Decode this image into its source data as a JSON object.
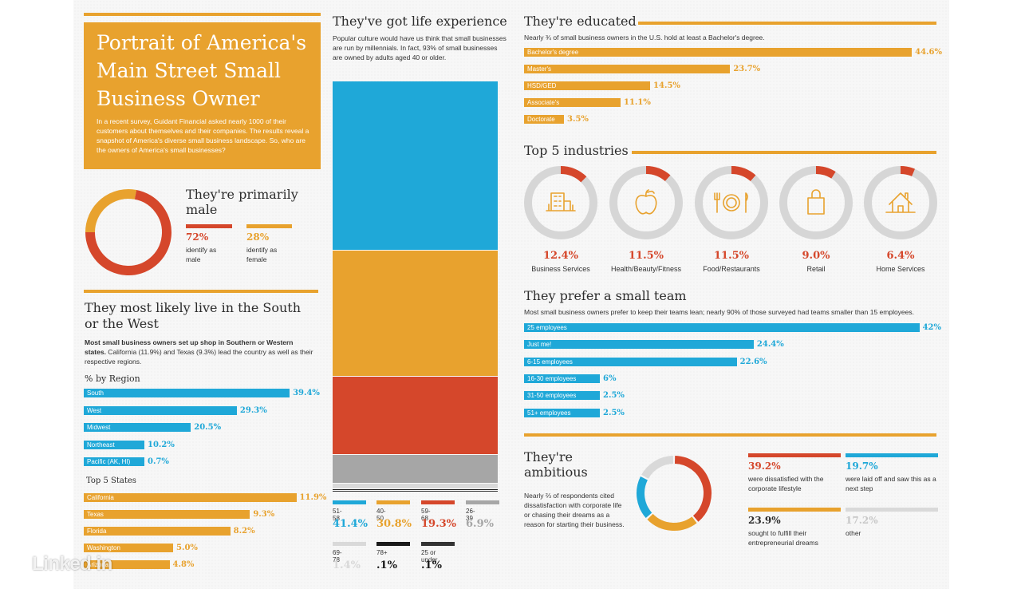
{
  "title_block": {
    "title": "Portrait of America's Main Street Small Business Owner",
    "intro": "In a recent survey, Guidant Financial asked nearly 1000 of their customers about themselves and their companies. The results reveal a snapshot of America's diverse small business landscape. So, who are the owners of America's small businesses?"
  },
  "gender": {
    "heading": "They're primarily male",
    "male_pct": "72%",
    "male_label": "identify as male",
    "female_pct": "28%",
    "female_label": "identify as female"
  },
  "region": {
    "heading": "They most likely live in the South or the West",
    "desc_bold": "Most small business owners set up shop in Southern or Western states.",
    "desc": " California (11.9%) and Texas (9.3%) lead the country as well as their respective regions.",
    "sub_heading": "% by Region",
    "states_heading": "Top 5 States"
  },
  "age": {
    "heading": "They've got life experience",
    "desc": "Popular culture would have us think that small businesses are run by millennials. In fact, 93% of small businesses are owned by adults aged 40 or older."
  },
  "education": {
    "heading": "They're educated",
    "desc": "Nearly ¾ of small business owners in the U.S. hold at least a Bachelor's degree."
  },
  "industries": {
    "heading": "Top 5 industries"
  },
  "team": {
    "heading": "They prefer a small team",
    "desc": "Most small business owners prefer to keep their teams lean; nearly 90% of those surveyed had teams smaller than 15 employees."
  },
  "ambition": {
    "heading": "They're ambitious",
    "desc": "Nearly ⅔ of respondents cited dissatisfaction with corporate life or chasing their dreams as a reason for starting their business.",
    "items": [
      {
        "pct": "39.2%",
        "text": "were dissatisfied with the corporate lifestyle",
        "color": "#d5472b"
      },
      {
        "pct": "19.7%",
        "text": "were laid off and saw this as a next step",
        "color": "#1fa8d8"
      },
      {
        "pct": "23.9%",
        "text": "sought to fulfill their entrepreneurial dreams",
        "color": "#e8a22e"
      },
      {
        "pct": "17.2%",
        "text": "other",
        "color": "#d9d9d9"
      }
    ]
  },
  "watermark": "Linked in",
  "chart_data": [
    {
      "type": "pie",
      "id": "gender",
      "categories": [
        "identify as male",
        "identify as female"
      ],
      "values": [
        72,
        28
      ],
      "colors": [
        "#d5472b",
        "#e8a22e"
      ]
    },
    {
      "type": "bar",
      "id": "region",
      "title": "% by Region",
      "categories": [
        "South",
        "West",
        "Midwest",
        "Northeast",
        "Pacific (AK, HI)"
      ],
      "values": [
        39.4,
        29.3,
        20.5,
        10.2,
        0.7
      ],
      "labels": [
        "39.4%",
        "29.3%",
        "20.5%",
        "10.2%",
        "0.7%"
      ]
    },
    {
      "type": "bar",
      "id": "states",
      "title": "Top 5 States",
      "categories": [
        "California",
        "Texas",
        "Florida",
        "Washington",
        "Arizona"
      ],
      "values": [
        11.9,
        9.3,
        8.2,
        5.0,
        4.8
      ],
      "labels": [
        "11.9%",
        "9.3%",
        "8.2%",
        "5.0%",
        "4.8%"
      ]
    },
    {
      "type": "bar",
      "id": "age",
      "categories": [
        "51-58",
        "40-50",
        "59-68",
        "26-39",
        "69-78",
        "78+",
        "25 or under"
      ],
      "values": [
        41.4,
        30.8,
        19.3,
        6.9,
        1.4,
        0.1,
        0.1
      ],
      "labels": [
        "41.4%",
        "30.8%",
        "19.3%",
        "6.9%",
        "1.4%",
        ".1%",
        ".1%"
      ],
      "colors": [
        "#1fa8d8",
        "#e8a22e",
        "#d5472b",
        "#a6a6a6",
        "#d9d9d9",
        "#1a1a1a",
        "#333333"
      ]
    },
    {
      "type": "bar",
      "id": "education",
      "categories": [
        "Bachelor's degree",
        "Master's",
        "HSD/GED",
        "Associate's",
        "Doctorate"
      ],
      "values": [
        44.6,
        23.7,
        14.5,
        11.1,
        3.5
      ],
      "labels": [
        "44.6%",
        "23.7%",
        "14.5%",
        "11.1%",
        "3.5%"
      ]
    },
    {
      "type": "pie",
      "id": "industries",
      "categories": [
        "Business Services",
        "Health/Beauty/Fitness",
        "Food/Restaurants",
        "Retail",
        "Home Services"
      ],
      "values": [
        12.4,
        11.5,
        11.5,
        9.0,
        6.4
      ],
      "labels": [
        "12.4%",
        "11.5%",
        "11.5%",
        "9.0%",
        "6.4%"
      ]
    },
    {
      "type": "bar",
      "id": "team",
      "categories": [
        "25 employees",
        "Just me!",
        "6-15 employees",
        "16-30 employees",
        "31-50 employees",
        "51+ employees"
      ],
      "values": [
        42,
        24.4,
        22.6,
        6,
        2.5,
        2.5
      ],
      "labels": [
        "42%",
        "24.4%",
        "22.6%",
        "6%",
        "2.5%",
        "2.5%"
      ]
    },
    {
      "type": "pie",
      "id": "ambition",
      "categories": [
        "were dissatisfied with the corporate lifestyle",
        "sought to fulfill their entrepreneurial dreams",
        "were laid off and saw this as a next step",
        "other"
      ],
      "values": [
        39.2,
        23.9,
        19.7,
        17.2
      ],
      "colors": [
        "#d5472b",
        "#e8a22e",
        "#1fa8d8",
        "#d9d9d9"
      ]
    }
  ]
}
